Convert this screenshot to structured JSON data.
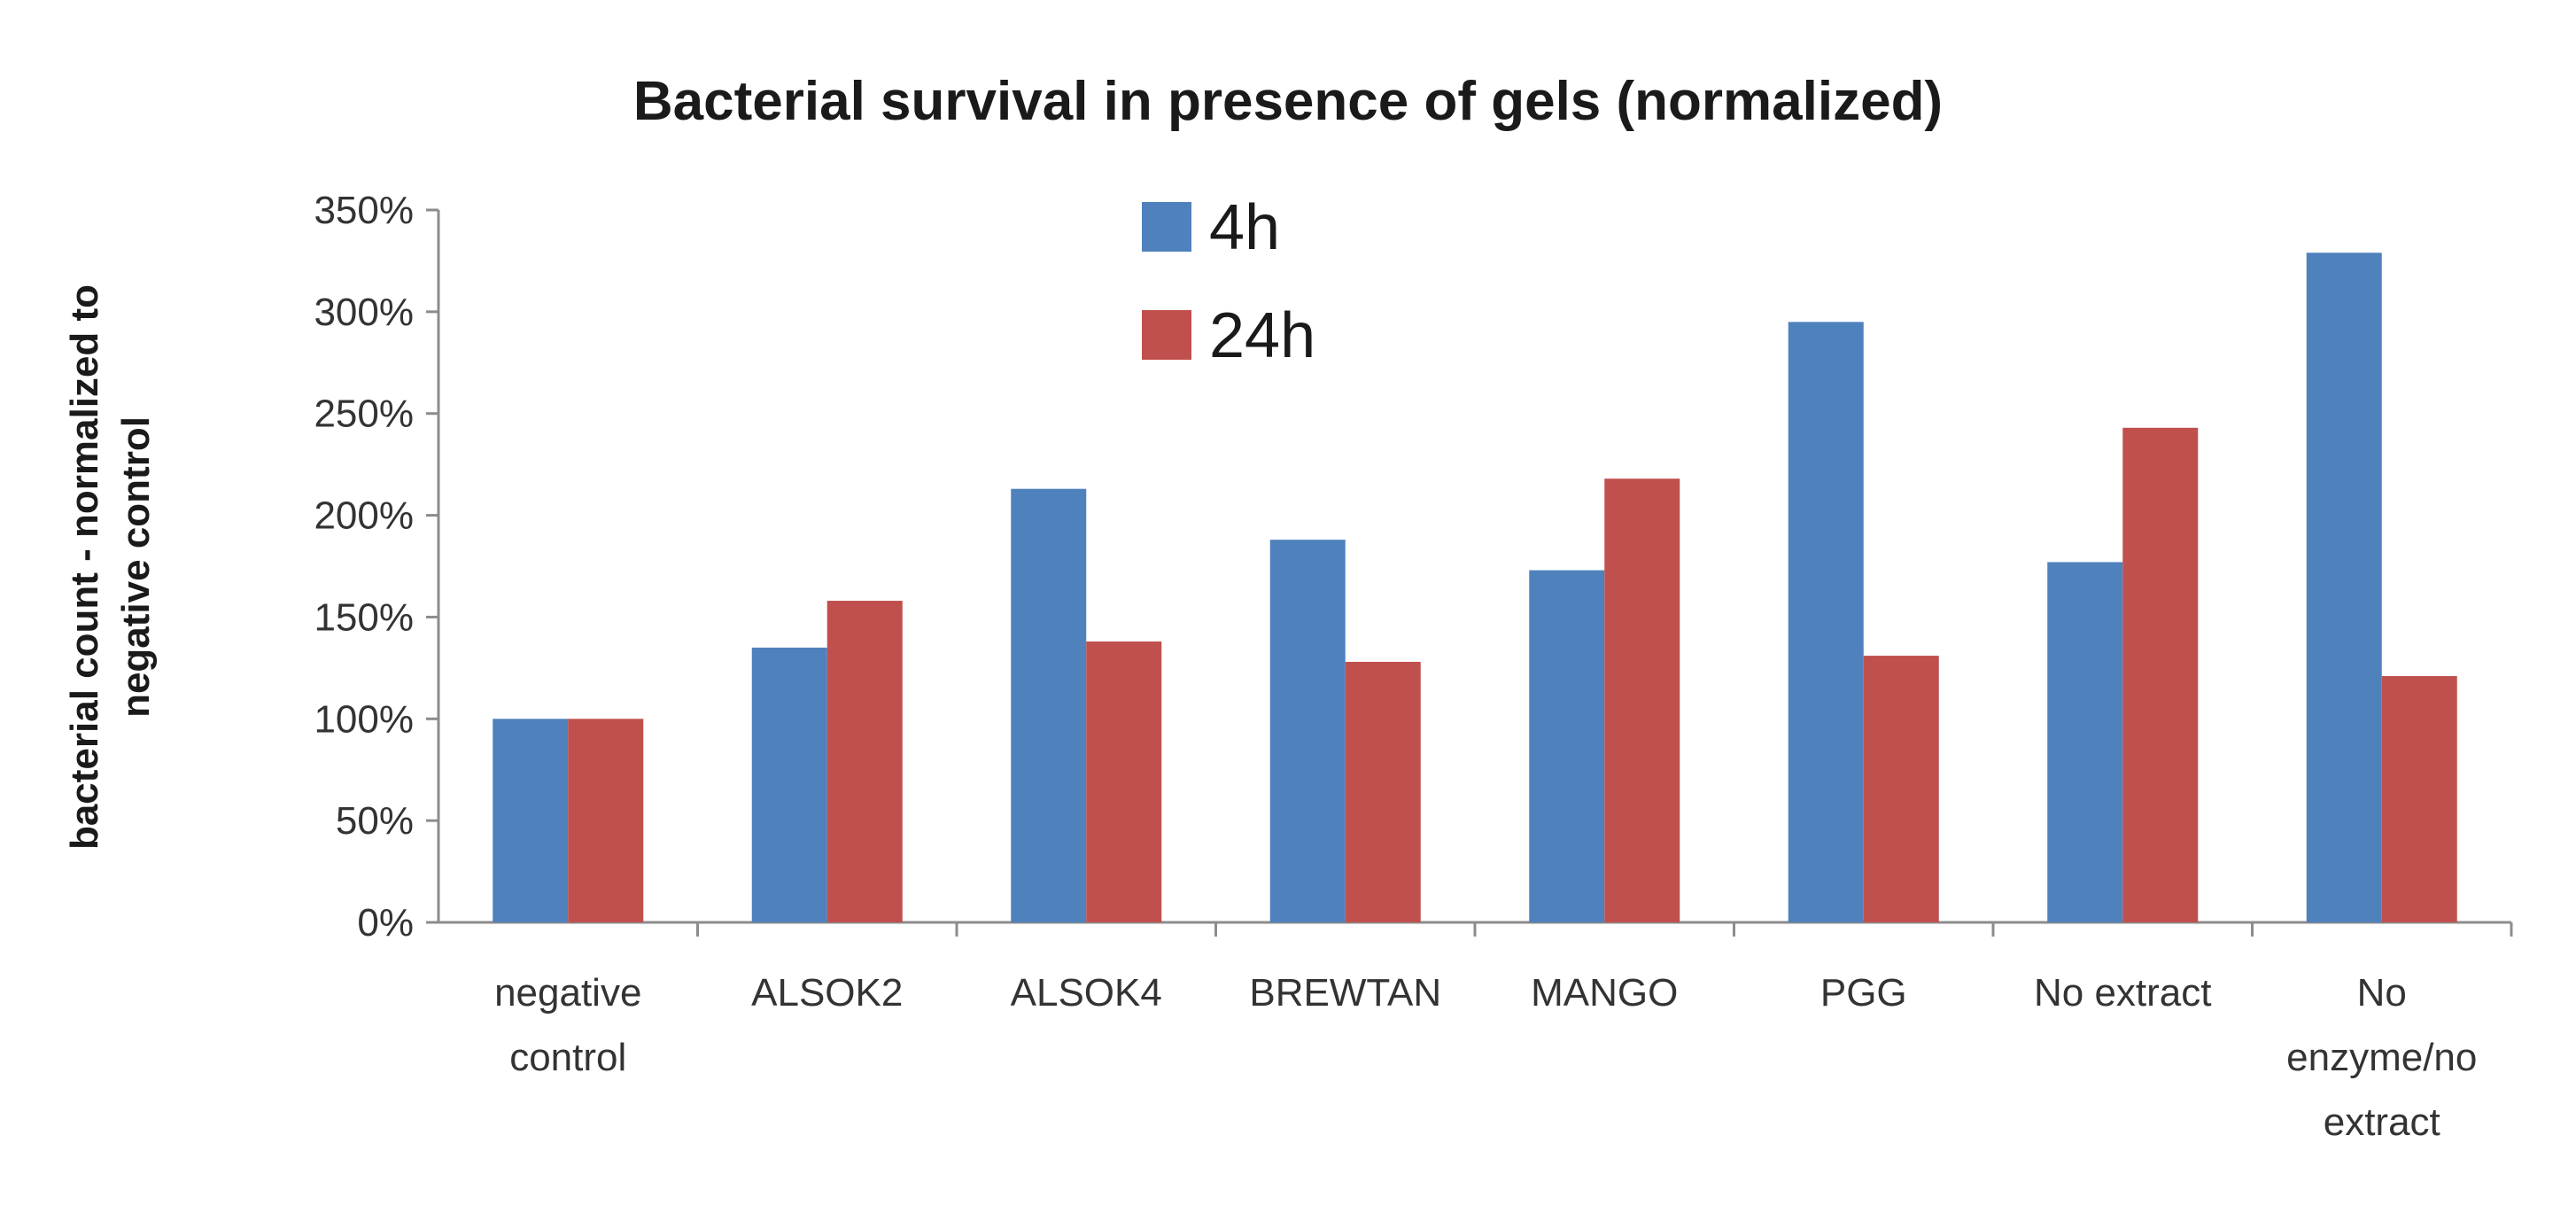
{
  "chart_data": {
    "type": "bar",
    "title": "Bacterial survival in presence of gels (normalized)",
    "xlabel": "",
    "ylabel_lines": [
      "bacterial count - normalized to",
      "negative control"
    ],
    "categories": [
      [
        "negative",
        "control"
      ],
      [
        "ALSOK2"
      ],
      [
        "ALSOK4"
      ],
      [
        "BREWTAN"
      ],
      [
        "MANGO"
      ],
      [
        "PGG"
      ],
      [
        "No extract"
      ],
      [
        "No",
        "enzyme/no",
        "extract"
      ]
    ],
    "series": [
      {
        "name": "4h",
        "color": "#4f81bd",
        "values": [
          100,
          135,
          213,
          188,
          173,
          295,
          177,
          329
        ]
      },
      {
        "name": "24h",
        "color": "#c0504d",
        "values": [
          100,
          158,
          138,
          128,
          218,
          131,
          243,
          121
        ]
      }
    ],
    "ylim": [
      0,
      350
    ],
    "yticks": [
      0,
      50,
      100,
      150,
      200,
      250,
      300,
      350
    ],
    "ytick_labels": [
      "0%",
      "50%",
      "100%",
      "150%",
      "200%",
      "250%",
      "300%",
      "350%"
    ],
    "legend_position": "top-center",
    "grid": false
  }
}
